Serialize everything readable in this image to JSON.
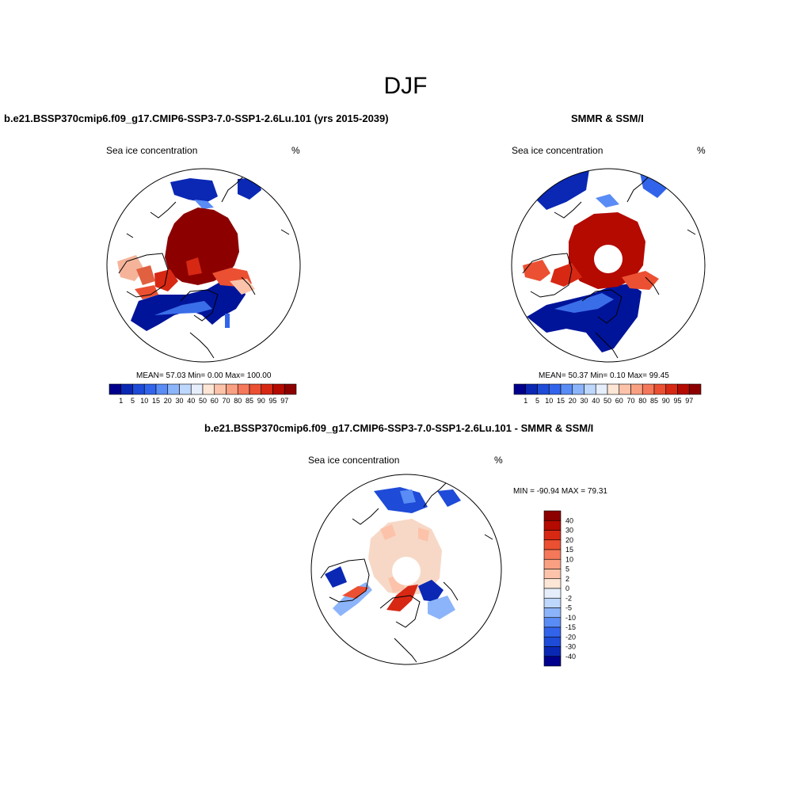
{
  "title": "DJF",
  "panels": [
    {
      "id": "model",
      "title": "b.e21.BSSP370cmip6.f09_g17.CMIP6-SSP3-7.0-SSP1-2.6Lu.101 (yrs 2015-2039)",
      "left_label": "Sea ice concentration",
      "right_label": "%",
      "stats": "MEAN=  57.03  Min=   0.00  Max= 100.00"
    },
    {
      "id": "obs",
      "title": "SMMR & SSM/I",
      "left_label": "Sea ice concentration",
      "right_label": "%",
      "stats": "MEAN=  50.37  Min=   0.10  Max=  99.45"
    },
    {
      "id": "diff",
      "title": "b.e21.BSSP370cmip6.f09_g17.CMIP6-SSP3-7.0-SSP1-2.6Lu.101 - SMMR & SSM/I",
      "left_label": "Sea ice concentration",
      "right_label": "%",
      "stats": "MIN = -90.94 MAX =  79.31"
    }
  ],
  "colorbar_horizontal": {
    "labels": [
      "1",
      "5",
      "10",
      "15",
      "20",
      "30",
      "40",
      "50",
      "60",
      "70",
      "80",
      "85",
      "90",
      "95",
      "97"
    ],
    "colors": [
      "#00008c",
      "#0a28b4",
      "#1e4bd7",
      "#3264eb",
      "#5a8cf5",
      "#8cb4fa",
      "#bed7fc",
      "#e6eefc",
      "#fee6d7",
      "#fcc3aa",
      "#faa082",
      "#f5785a",
      "#eb5032",
      "#d72814",
      "#b40a00",
      "#8c0000"
    ]
  },
  "colorbar_vertical": {
    "labels": [
      "40",
      "30",
      "20",
      "15",
      "10",
      "5",
      "2",
      "0",
      "-2",
      "-5",
      "-10",
      "-15",
      "-20",
      "-30",
      "-40"
    ],
    "colors": [
      "#8c0000",
      "#b40a00",
      "#d72814",
      "#eb5032",
      "#f5785a",
      "#faa082",
      "#fcc3aa",
      "#fee6d7",
      "#e6eefc",
      "#bed7fc",
      "#8cb4fa",
      "#5a8cf5",
      "#3264eb",
      "#1e4bd7",
      "#0a28b4",
      "#00008c"
    ]
  },
  "map_colors": {
    "ice_high": "#8c0000",
    "ice_mid": "#e04020",
    "ice_low": "#f5b49a",
    "open_ocean": "#00149a",
    "ocean_blue": "#3a6ee8",
    "diff_pos": "#f7d8c6",
    "diff_neg": "#1e4bd7"
  }
}
